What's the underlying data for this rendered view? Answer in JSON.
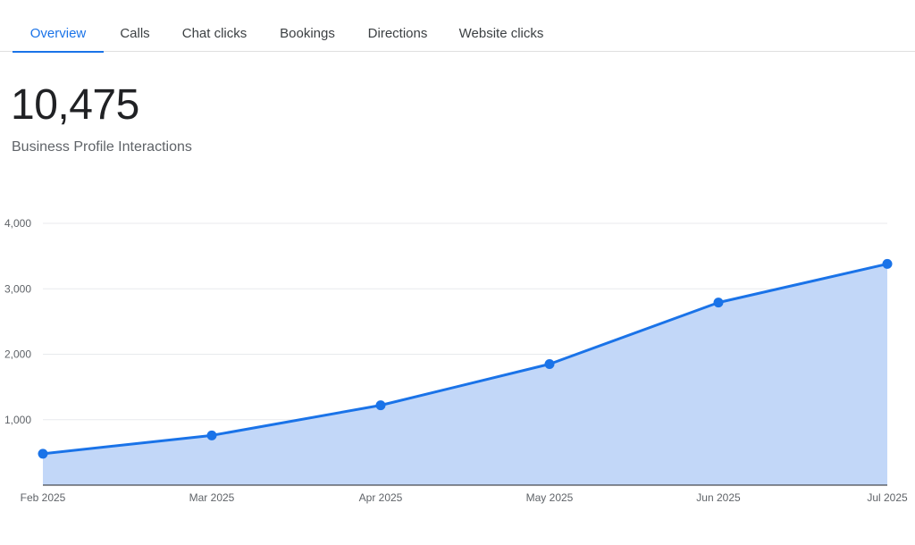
{
  "tabs": [
    {
      "label": "Overview",
      "active": true
    },
    {
      "label": "Calls",
      "active": false
    },
    {
      "label": "Chat clicks",
      "active": false
    },
    {
      "label": "Bookings",
      "active": false
    },
    {
      "label": "Directions",
      "active": false
    },
    {
      "label": "Website clicks",
      "active": false
    }
  ],
  "metric": {
    "value": "10,475",
    "label": "Business Profile Interactions"
  },
  "colors": {
    "accent": "#1a73e8",
    "line": "#1a73e8",
    "area": "#c2d7f8",
    "grid": "#e8eaed",
    "axis": "#202124"
  },
  "chart_data": {
    "type": "area",
    "categories": [
      "Feb 2025",
      "Mar 2025",
      "Apr 2025",
      "May 2025",
      "Jun 2025",
      "Jul 2025"
    ],
    "series": [
      {
        "values": [
          480,
          760,
          1220,
          1850,
          2790,
          3380
        ]
      }
    ],
    "y_ticks": [
      "1,000",
      "2,000",
      "3,000",
      "4,000"
    ],
    "y_tick_values": [
      1000,
      2000,
      3000,
      4000
    ],
    "ylim": [
      0,
      4000
    ],
    "grid": true,
    "legend": "none"
  }
}
